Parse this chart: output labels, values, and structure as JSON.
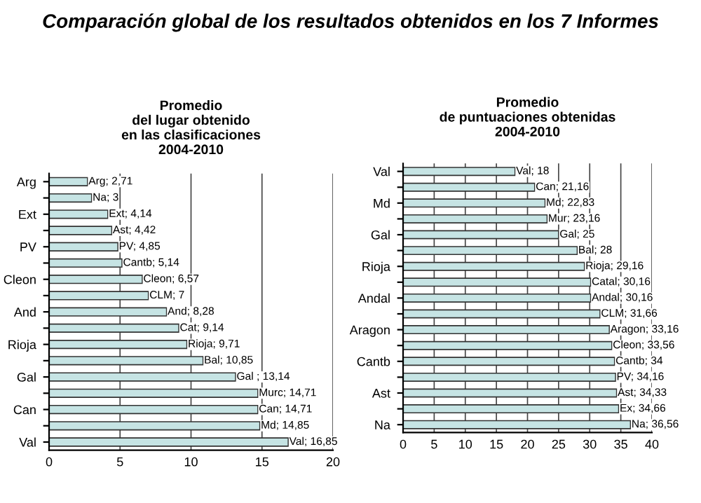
{
  "chart_data": [
    {
      "type": "bar",
      "orientation": "horizontal",
      "title": "Promedio\ndel lugar obtenido\nen las clasificaciones\n2004-2010",
      "annotations": [
        "Comparación global de los resultados obtenidos en los 7 Informes"
      ],
      "categories": [
        "Arg",
        null,
        "Ext",
        null,
        "PV",
        null,
        "Cleon",
        null,
        "And",
        null,
        "Rioja",
        null,
        "Gal",
        null,
        "Can",
        null,
        "Val"
      ],
      "values": [
        2.71,
        3,
        4.14,
        4.42,
        4.85,
        5.14,
        6.57,
        7,
        8.28,
        9.14,
        9.71,
        10.85,
        13.14,
        14.71,
        14.71,
        14.85,
        16.85
      ],
      "value_labels": [
        "Arg; 2,71",
        "Na; 3",
        "Ext; 4,14",
        "Ast; 4,42",
        "PV; 4,85",
        "Cantb; 5,14",
        "Cleon; 6,57",
        "CLM; 7",
        "And; 8,28",
        "Cat; 9,14",
        "Rioja; 9,71",
        "Bal; 10,85",
        "Gal ; 13,14",
        "Murc; 14,71",
        "Can; 14,71",
        "Md; 14,85",
        "Val; 16,85"
      ],
      "color": "#c6e4e4",
      "xlim": [
        0,
        20
      ],
      "xticks": [
        0,
        5,
        10,
        15,
        20
      ],
      "grid": "x"
    },
    {
      "type": "bar",
      "orientation": "horizontal",
      "title": "Promedio\nde puntuaciones obtenidas\n2004-2010",
      "categories": [
        "Val",
        null,
        "Md",
        null,
        "Gal",
        null,
        "Rioja",
        null,
        "Andal",
        null,
        "Aragon",
        null,
        "Cantb",
        null,
        "Ast",
        null,
        "Na"
      ],
      "values": [
        18,
        21.16,
        22.83,
        23.16,
        25,
        28,
        29.16,
        30.16,
        30.16,
        31.66,
        33.16,
        33.56,
        34,
        34.16,
        34.33,
        34.66,
        36.56
      ],
      "value_labels": [
        "Val; 18",
        "Can; 21,16",
        "Md; 22,83",
        "Mur; 23,16",
        "Gal; 25",
        "Bal; 28",
        "Rioja; 29,16",
        "Catal; 30,16",
        "Andal; 30,16",
        "CLM; 31,66",
        "Aragon; 33,16",
        "Cleon; 33,56",
        "Cantb; 34",
        "PV; 34,16",
        "Ast; 34,33",
        "Ex; 34,66",
        "Na; 36,56"
      ],
      "color": "#c6e4e4",
      "xlim": [
        0,
        40
      ],
      "xticks": [
        0,
        5,
        10,
        15,
        20,
        25,
        30,
        35,
        40
      ],
      "grid": "x"
    }
  ]
}
